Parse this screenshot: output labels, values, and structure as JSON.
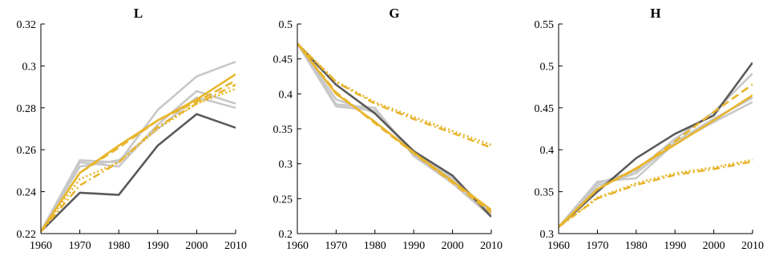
{
  "colors": {
    "dark_gray": "#5a5a5a",
    "light_gray": "#c8c8c8",
    "orange": "#e8b52c"
  },
  "chart_data": [
    {
      "type": "line",
      "title": "L",
      "x": [
        1960,
        1970,
        1980,
        1990,
        2000,
        2010
      ],
      "xticks": [
        "1960",
        "1970",
        "1980",
        "1990",
        "2000",
        "2010"
      ],
      "xlim": [
        1960,
        2010
      ],
      "ylim": [
        0.22,
        0.32
      ],
      "yticks": [
        "0.22",
        "0.24",
        "0.26",
        "0.28",
        "0.3",
        "0.32"
      ],
      "grid": false,
      "series": [
        {
          "color": "light_gray",
          "style": "solid",
          "values": [
            0.221,
            0.255,
            0.254,
            0.279,
            0.295,
            0.302
          ]
        },
        {
          "color": "light_gray",
          "style": "solid",
          "values": [
            0.221,
            0.254,
            0.252,
            0.272,
            0.288,
            0.282
          ]
        },
        {
          "color": "light_gray",
          "style": "solid",
          "values": [
            0.221,
            0.252,
            0.255,
            0.27,
            0.285,
            0.28
          ]
        },
        {
          "color": "dark_gray",
          "style": "solid",
          "values": [
            0.221,
            0.2395,
            0.2385,
            0.262,
            0.277,
            0.2705
          ]
        },
        {
          "color": "orange",
          "style": "solid",
          "values": [
            0.221,
            0.249,
            0.262,
            0.274,
            0.284,
            0.296
          ]
        },
        {
          "color": "orange",
          "style": "dashed",
          "values": [
            0.221,
            0.249,
            0.261,
            0.274,
            0.283,
            0.293
          ]
        },
        {
          "color": "orange",
          "style": "dashdot",
          "values": [
            0.221,
            0.243,
            0.254,
            0.271,
            0.282,
            0.291
          ]
        },
        {
          "color": "orange",
          "style": "dotted",
          "values": [
            0.221,
            0.246,
            0.254,
            0.27,
            0.282,
            0.289
          ]
        }
      ]
    },
    {
      "type": "line",
      "title": "G",
      "x": [
        1960,
        1970,
        1980,
        1990,
        2000,
        2010
      ],
      "xticks": [
        "1960",
        "1970",
        "1980",
        "1990",
        "2000",
        "2010"
      ],
      "xlim": [
        1960,
        2010
      ],
      "ylim": [
        0.2,
        0.5
      ],
      "yticks": [
        "0.2",
        "0.25",
        "0.3",
        "0.35",
        "0.4",
        "0.45",
        "0.5"
      ],
      "grid": false,
      "series": [
        {
          "color": "light_gray",
          "style": "solid",
          "values": [
            0.472,
            0.385,
            0.38,
            0.311,
            0.272,
            0.224
          ]
        },
        {
          "color": "light_gray",
          "style": "solid",
          "values": [
            0.472,
            0.382,
            0.376,
            0.313,
            0.276,
            0.228
          ]
        },
        {
          "color": "light_gray",
          "style": "solid",
          "values": [
            0.472,
            0.392,
            0.373,
            0.315,
            0.279,
            0.231
          ]
        },
        {
          "color": "dark_gray",
          "style": "solid",
          "values": [
            0.472,
            0.413,
            0.372,
            0.318,
            0.283,
            0.224
          ]
        },
        {
          "color": "orange",
          "style": "solid",
          "values": [
            0.472,
            0.4,
            0.36,
            0.316,
            0.275,
            0.234
          ]
        },
        {
          "color": "orange",
          "style": "dashed",
          "values": [
            0.472,
            0.402,
            0.358,
            0.315,
            0.273,
            0.23
          ]
        },
        {
          "color": "orange",
          "style": "dashdot",
          "values": [
            0.472,
            0.417,
            0.386,
            0.364,
            0.344,
            0.323
          ]
        },
        {
          "color": "orange",
          "style": "dotted",
          "values": [
            0.472,
            0.418,
            0.388,
            0.367,
            0.347,
            0.327
          ]
        }
      ]
    },
    {
      "type": "line",
      "title": "H",
      "x": [
        1960,
        1970,
        1980,
        1990,
        2000,
        2010
      ],
      "xticks": [
        "1960",
        "1970",
        "1980",
        "1990",
        "2000",
        "2010"
      ],
      "xlim": [
        1960,
        2010
      ],
      "ylim": [
        0.3,
        0.55
      ],
      "yticks": [
        "0.3",
        "0.35",
        "0.4",
        "0.45",
        "0.5",
        "0.55"
      ],
      "grid": false,
      "series": [
        {
          "color": "light_gray",
          "style": "solid",
          "values": [
            0.308,
            0.362,
            0.366,
            0.408,
            0.433,
            0.457
          ]
        },
        {
          "color": "light_gray",
          "style": "solid",
          "values": [
            0.308,
            0.357,
            0.372,
            0.409,
            0.437,
            0.462
          ]
        },
        {
          "color": "light_gray",
          "style": "solid",
          "values": [
            0.308,
            0.36,
            0.375,
            0.413,
            0.445,
            0.491
          ]
        },
        {
          "color": "dark_gray",
          "style": "solid",
          "values": [
            0.308,
            0.35,
            0.39,
            0.419,
            0.441,
            0.504
          ]
        },
        {
          "color": "orange",
          "style": "solid",
          "values": [
            0.308,
            0.353,
            0.378,
            0.406,
            0.435,
            0.465
          ]
        },
        {
          "color": "orange",
          "style": "dashed",
          "values": [
            0.308,
            0.353,
            0.377,
            0.41,
            0.445,
            0.478
          ]
        },
        {
          "color": "orange",
          "style": "dashdot",
          "values": [
            0.308,
            0.342,
            0.358,
            0.37,
            0.377,
            0.386
          ]
        },
        {
          "color": "orange",
          "style": "dotted",
          "values": [
            0.308,
            0.343,
            0.36,
            0.372,
            0.379,
            0.388
          ]
        }
      ]
    }
  ]
}
